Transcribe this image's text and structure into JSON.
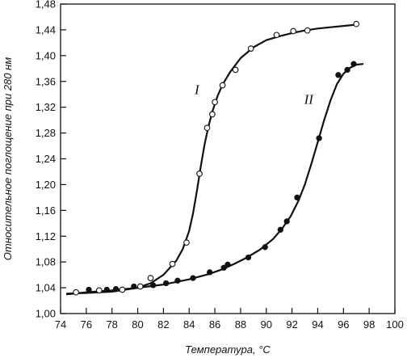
{
  "chart_data": {
    "type": "line",
    "xlabel": "Температура, °C",
    "ylabel": "Относительное поглощение при 280 нм",
    "xlim": [
      74,
      100
    ],
    "ylim": [
      1.0,
      1.48
    ],
    "xticks": [
      74,
      76,
      78,
      80,
      82,
      84,
      86,
      88,
      90,
      92,
      94,
      96,
      98,
      100
    ],
    "yticks": [
      1.0,
      1.04,
      1.08,
      1.12,
      1.16,
      1.2,
      1.24,
      1.28,
      1.32,
      1.36,
      1.4,
      1.44,
      1.48
    ],
    "grid": false,
    "legend": "none",
    "series": [
      {
        "name": "I",
        "marker": "open-circle",
        "color": "#111111",
        "points": [
          [
            75.2,
            1.033
          ],
          [
            77.0,
            1.036
          ],
          [
            78.8,
            1.037
          ],
          [
            80.2,
            1.042
          ],
          [
            81.0,
            1.055
          ],
          [
            82.7,
            1.077
          ],
          [
            83.8,
            1.11
          ],
          [
            84.8,
            1.217
          ],
          [
            85.4,
            1.288
          ],
          [
            85.8,
            1.309
          ],
          [
            86.0,
            1.328
          ],
          [
            86.6,
            1.354
          ],
          [
            87.6,
            1.378
          ],
          [
            88.8,
            1.411
          ],
          [
            90.8,
            1.432
          ],
          [
            92.1,
            1.438
          ],
          [
            93.2,
            1.439
          ],
          [
            97.0,
            1.449
          ]
        ],
        "curve": [
          [
            74.5,
            1.031
          ],
          [
            76,
            1.032
          ],
          [
            78,
            1.034
          ],
          [
            80,
            1.04
          ],
          [
            81,
            1.047
          ],
          [
            82,
            1.06
          ],
          [
            83,
            1.082
          ],
          [
            83.5,
            1.1
          ],
          [
            84,
            1.128
          ],
          [
            84.3,
            1.155
          ],
          [
            84.6,
            1.19
          ],
          [
            84.9,
            1.228
          ],
          [
            85.2,
            1.262
          ],
          [
            85.5,
            1.29
          ],
          [
            85.8,
            1.313
          ],
          [
            86.2,
            1.337
          ],
          [
            86.6,
            1.355
          ],
          [
            87.2,
            1.375
          ],
          [
            88,
            1.396
          ],
          [
            89,
            1.413
          ],
          [
            90,
            1.424
          ],
          [
            91,
            1.43
          ],
          [
            92,
            1.435
          ],
          [
            93,
            1.439
          ],
          [
            94,
            1.442
          ],
          [
            95,
            1.444
          ],
          [
            96,
            1.446
          ],
          [
            97,
            1.448
          ]
        ]
      },
      {
        "name": "II",
        "marker": "filled-circle",
        "color": "#111111",
        "points": [
          [
            76.2,
            1.037
          ],
          [
            77.6,
            1.037
          ],
          [
            78.3,
            1.038
          ],
          [
            79.7,
            1.042
          ],
          [
            81.2,
            1.044
          ],
          [
            82.2,
            1.047
          ],
          [
            83.1,
            1.051
          ],
          [
            84.3,
            1.055
          ],
          [
            85.6,
            1.064
          ],
          [
            86.7,
            1.071
          ],
          [
            87.0,
            1.076
          ],
          [
            88.6,
            1.087
          ],
          [
            89.9,
            1.103
          ],
          [
            91.1,
            1.13
          ],
          [
            91.6,
            1.143
          ],
          [
            92.4,
            1.18
          ],
          [
            94.1,
            1.272
          ],
          [
            95.6,
            1.37
          ],
          [
            96.3,
            1.378
          ],
          [
            96.8,
            1.387
          ]
        ],
        "curve": [
          [
            74.5,
            1.03
          ],
          [
            76,
            1.033
          ],
          [
            78,
            1.036
          ],
          [
            80,
            1.04
          ],
          [
            82,
            1.045
          ],
          [
            84,
            1.053
          ],
          [
            85.5,
            1.061
          ],
          [
            86.5,
            1.068
          ],
          [
            87.5,
            1.077
          ],
          [
            88.5,
            1.087
          ],
          [
            89.5,
            1.099
          ],
          [
            90.5,
            1.115
          ],
          [
            91.2,
            1.131
          ],
          [
            91.9,
            1.151
          ],
          [
            92.5,
            1.175
          ],
          [
            93,
            1.2
          ],
          [
            93.5,
            1.232
          ],
          [
            94,
            1.266
          ],
          [
            94.5,
            1.3
          ],
          [
            95,
            1.331
          ],
          [
            95.5,
            1.356
          ],
          [
            96,
            1.372
          ],
          [
            96.5,
            1.381
          ],
          [
            97,
            1.386
          ],
          [
            97.5,
            1.387
          ]
        ]
      }
    ],
    "annotations": [
      {
        "text": "I",
        "x": 84.6,
        "y": 1.34
      },
      {
        "text": "II",
        "x": 93.3,
        "y": 1.325
      }
    ]
  }
}
